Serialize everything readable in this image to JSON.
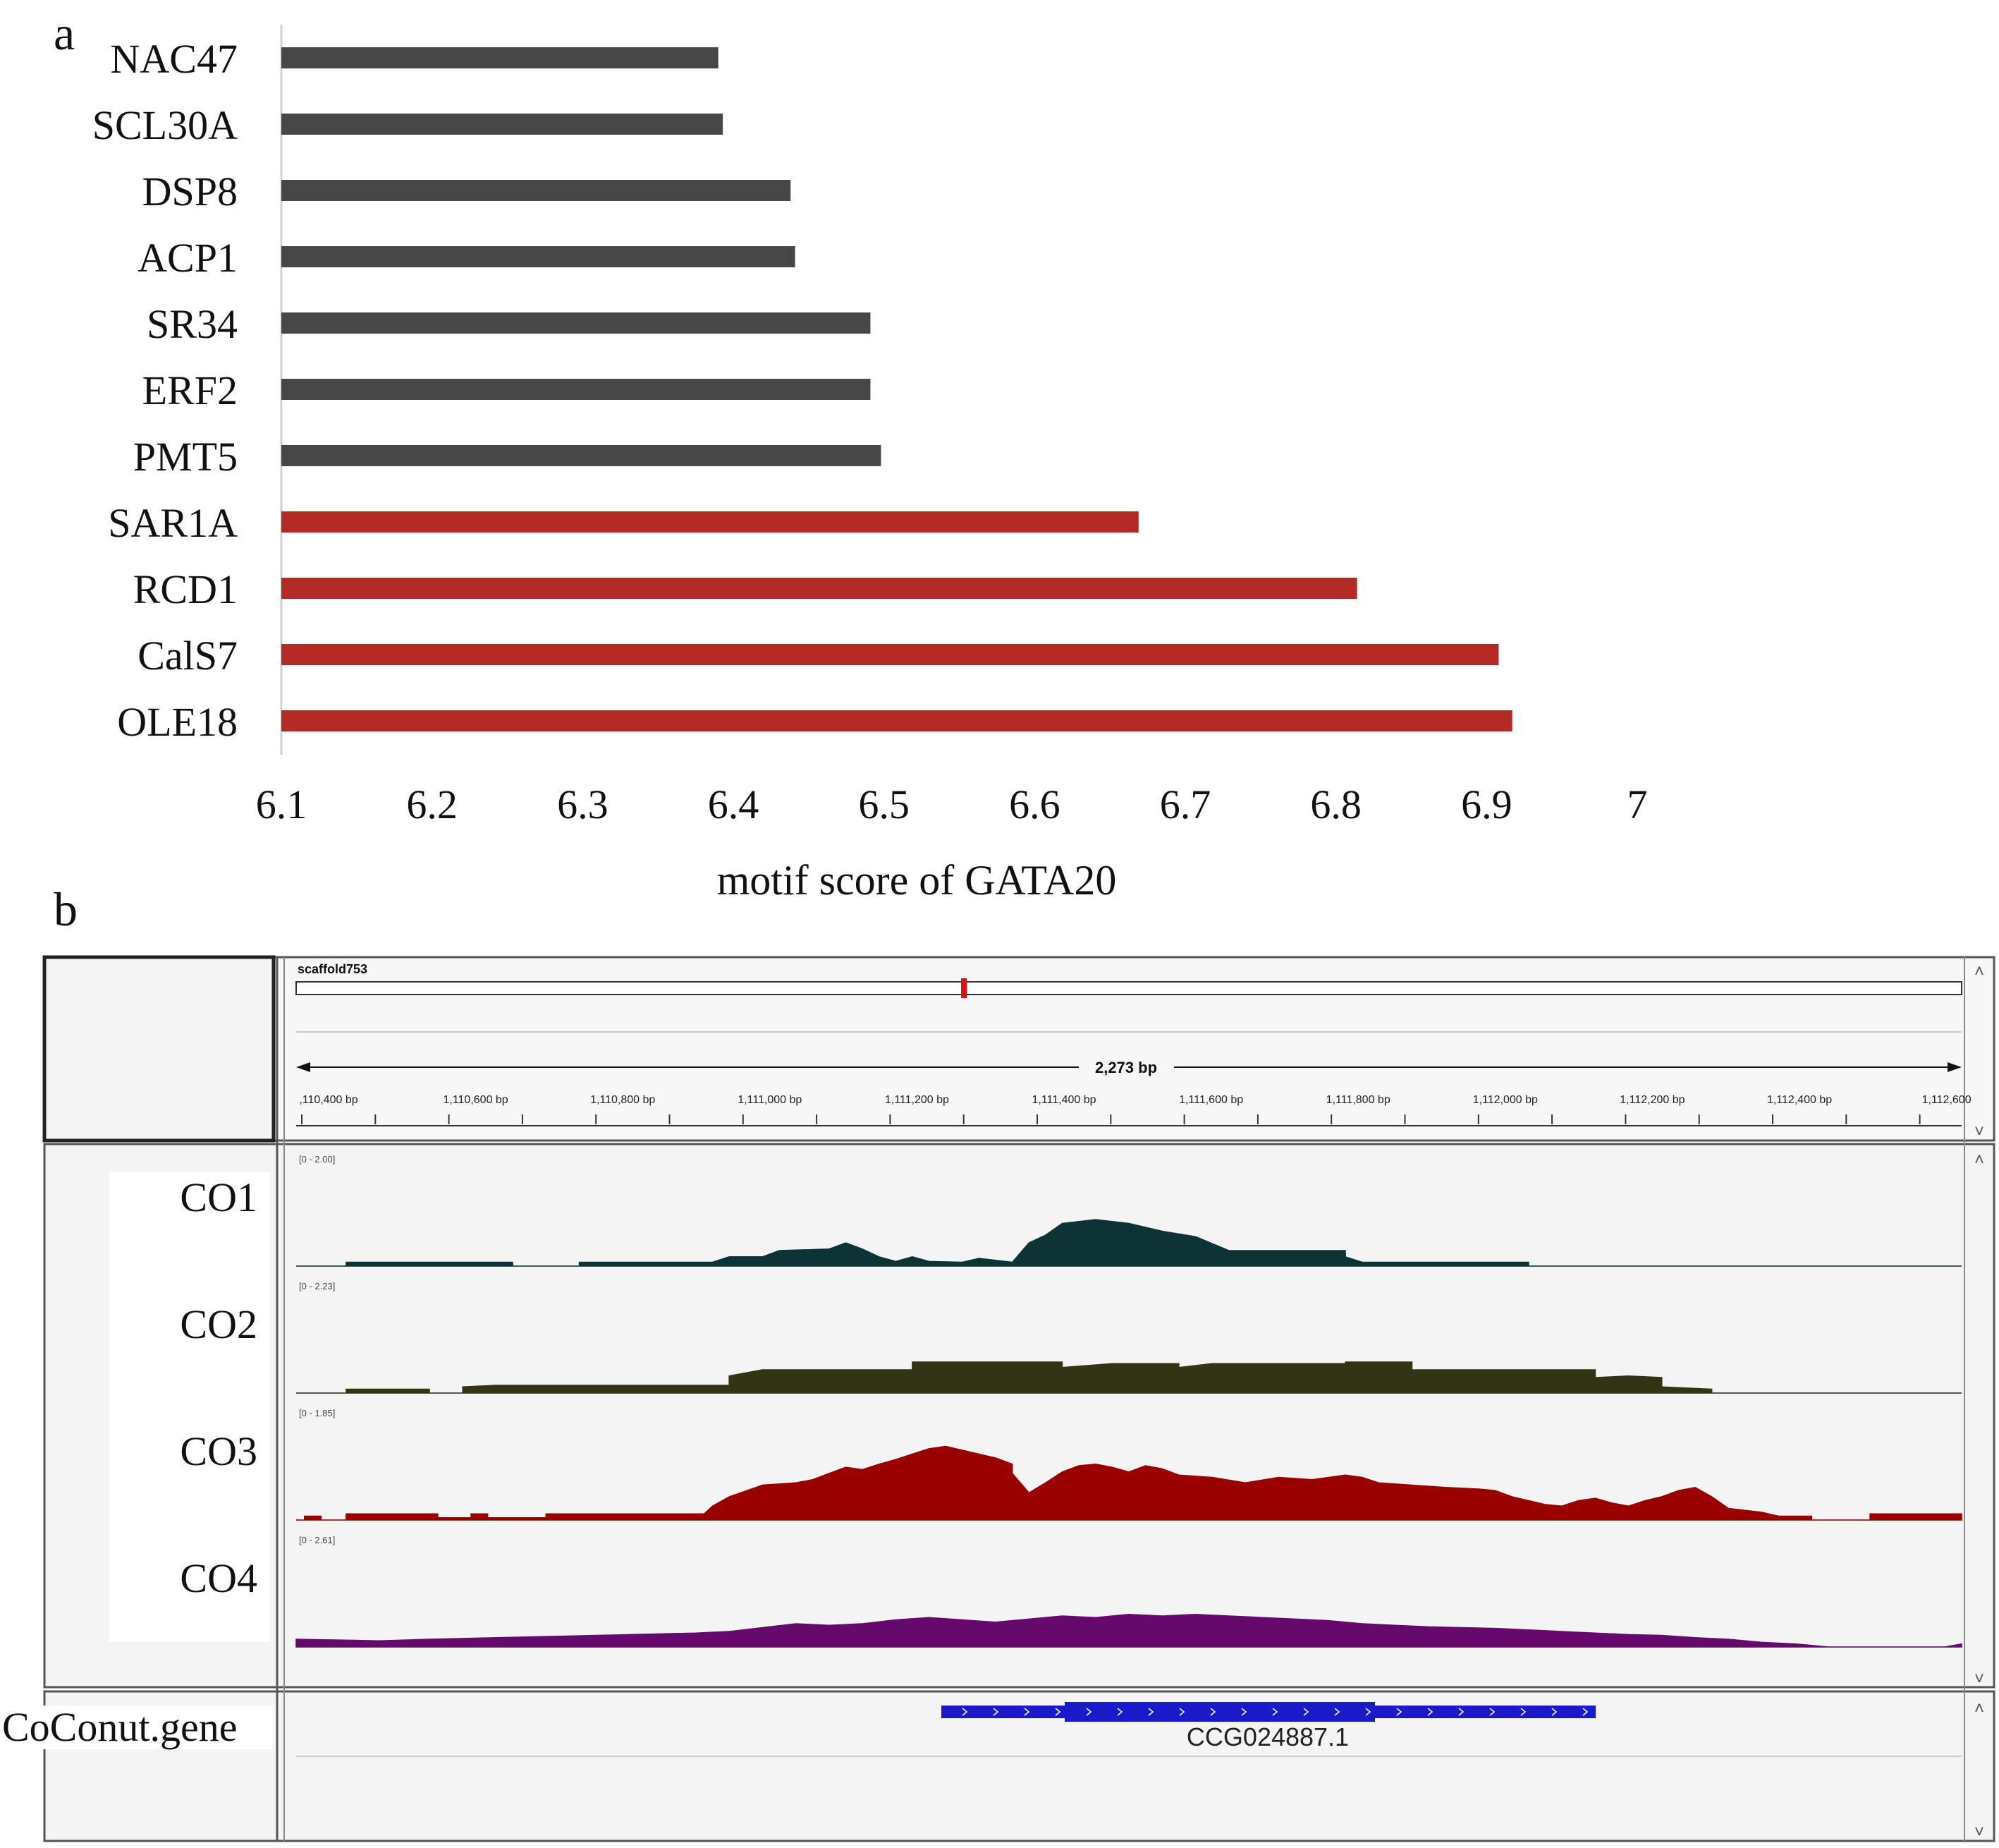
{
  "panel_a": {
    "letter": "a"
  },
  "panel_b": {
    "letter": "b"
  },
  "chart_data": {
    "type": "bar",
    "orientation": "horizontal",
    "categories": [
      "NAC47",
      "SCL30A",
      "DSP8",
      "ACP1",
      "SR34",
      "ERF2",
      "PMT5",
      "SAR1A",
      "RCD1",
      "CalS7",
      "OLE18"
    ],
    "values": [
      6.39,
      6.393,
      6.438,
      6.441,
      6.491,
      6.491,
      6.498,
      6.669,
      6.814,
      6.908,
      6.917
    ],
    "bar_colors": [
      "#474747",
      "#474747",
      "#474747",
      "#474747",
      "#474747",
      "#474747",
      "#474747",
      "#b42a25",
      "#b42a25",
      "#b42a25",
      "#b42a25"
    ],
    "xlabel": "motif score of GATA20",
    "ylabel": "",
    "xlim": [
      6.1,
      7.0
    ],
    "xticks": [
      "6.1",
      "6.2",
      "6.3",
      "6.4",
      "6.5",
      "6.6",
      "6.7",
      "6.8",
      "6.9",
      "7"
    ],
    "grid": false
  },
  "igv": {
    "chromosome": "scaffold753",
    "span_label": "2,273 bp",
    "ruler_ticks": [
      ",110,400 bp",
      "1,110,600 bp",
      "1,110,800 bp",
      "1,111,000 bp",
      "1,111,200 bp",
      "1,111,400 bp",
      "1,111,600 bp",
      "1,111,800 bp",
      "1,112,000 bp",
      "1,112,200 bp",
      "1,112,400 bp",
      "1,112,600"
    ],
    "tracks": [
      {
        "name": "CO1",
        "range": "[0 - 2.00]",
        "color": "#0d3336"
      },
      {
        "name": "CO2",
        "range": "[0 - 2.23]",
        "color": "#333315"
      },
      {
        "name": "CO3",
        "range": "[0 - 1.85]",
        "color": "#990000"
      },
      {
        "name": "CO4",
        "range": "[0 - 2.61]",
        "color": "#650a6c"
      }
    ],
    "gene_track": {
      "name": "CoConut.gene",
      "gene_id": "CCG024887.1",
      "color": "#1a1ac8"
    }
  }
}
